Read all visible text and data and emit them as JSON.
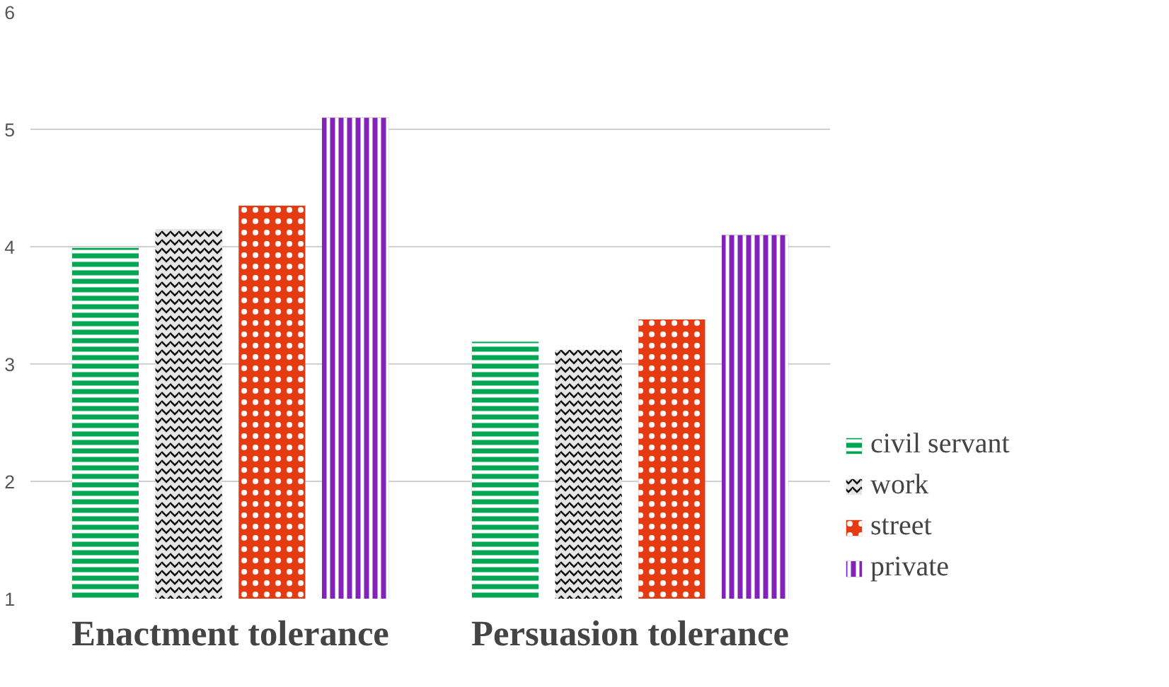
{
  "chart_data": {
    "type": "bar",
    "categories": [
      "Enactment tolerance",
      "Persuasion tolerance"
    ],
    "series": [
      {
        "name": "civil servant",
        "color": "#00a651",
        "values": [
          3.99,
          3.19
        ]
      },
      {
        "name": "work",
        "color": "#e6e6e6",
        "values": [
          4.15,
          3.12
        ]
      },
      {
        "name": "street",
        "color": "#e63a12",
        "values": [
          4.35,
          3.38
        ]
      },
      {
        "name": "private",
        "color": "#8222b8",
        "values": [
          5.1,
          4.1
        ]
      }
    ],
    "ylim": [
      1,
      6
    ],
    "yticks": [
      1,
      2,
      3,
      4,
      5,
      6
    ],
    "grid": "y",
    "legend": "right"
  }
}
